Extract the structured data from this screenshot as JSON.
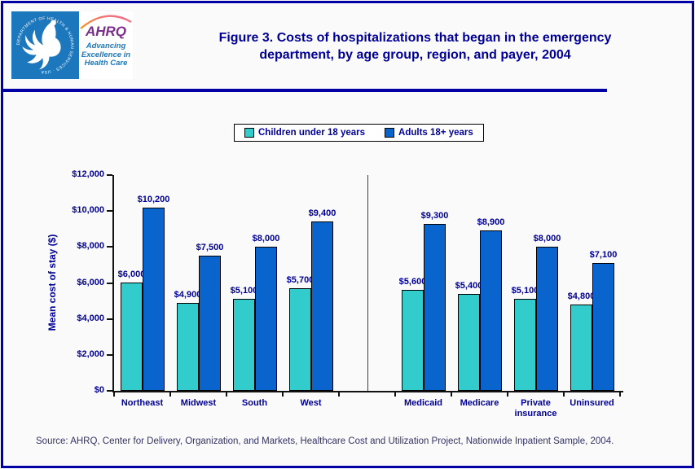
{
  "theme": {
    "navy": "#000099",
    "frame_blue": "#0000A5",
    "axis_black": "#111111",
    "background": "#FAFAFA",
    "source_text_color": "#333366",
    "separator_color": "#333399",
    "hhs_blue": "#1C77BC",
    "ahrq_purple": "#7B2E8A"
  },
  "header": {
    "logo": {
      "ring_text": "DEPARTMENT OF HEALTH & HUMAN SERVICES · USA",
      "ahrq": "AHRQ",
      "tagline_line1": "Advancing",
      "tagline_line2": "Excellence in",
      "tagline_line3": "Health Care"
    },
    "title_line1": "Figure 3. Costs of hospitalizations that began in the emergency",
    "title_line2": "department, by age group, region, and payer, 2004"
  },
  "chart_data": {
    "type": "bar",
    "title": "Figure 3. Costs of hospitalizations that began in the emergency department, by age group, region, and payer, 2004",
    "xlabel": "",
    "ylabel": "Mean cost of stay ($)",
    "ylim": [
      0,
      12000
    ],
    "ytick_step": 2000,
    "ytick_labels": [
      "$0",
      "$2,000",
      "$4,000",
      "$6,000",
      "$8,000",
      "$10,000",
      "$12,000"
    ],
    "grid": false,
    "legend_position": "top",
    "categories": [
      "Northeast",
      "Midwest",
      "South",
      "West",
      "Medicaid",
      "Medicare",
      "Private insurance",
      "Uninsured"
    ],
    "gap_after_index": 3,
    "series": [
      {
        "name": "Children under 18 years",
        "color": "#33CCCC",
        "values": [
          6000,
          4900,
          5100,
          5700,
          5600,
          5400,
          5100,
          4800
        ],
        "labels": [
          "$6,000",
          "$4,900",
          "$5,100",
          "$5,700",
          "$5,600",
          "$5,400",
          "$5,100",
          "$4,800"
        ]
      },
      {
        "name": "Adults 18+ years",
        "color": "#0A64CE",
        "values": [
          10200,
          7500,
          8000,
          9400,
          9300,
          8900,
          8000,
          7100
        ],
        "labels": [
          "$10,200",
          "$7,500",
          "$8,000",
          "$9,400",
          "$9,300",
          "$8,900",
          "$8,000",
          "$7,100"
        ]
      }
    ]
  },
  "footer": {
    "source": "Source: AHRQ, Center for Delivery, Organization, and Markets, Healthcare Cost and Utilization Project, Nationwide Inpatient Sample, 2004."
  }
}
